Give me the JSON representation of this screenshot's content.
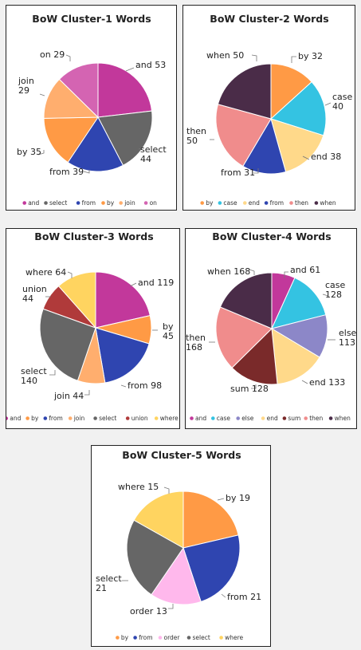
{
  "chart_data": [
    {
      "type": "pie",
      "title": "BoW Cluster-1 Words",
      "legend_position": "bottom",
      "categories": [
        "and",
        "select",
        "from",
        "by",
        "join",
        "on"
      ],
      "values": [
        53,
        44,
        39,
        35,
        29,
        29
      ],
      "colors": [
        "#c2389b",
        "#666666",
        "#2f45b0",
        "#ff9a45",
        "#ffae6e",
        "#d464b2"
      ],
      "slice_labels": [
        {
          "lines": [
            "and 53"
          ]
        },
        {
          "lines": [
            "select",
            "44"
          ]
        },
        {
          "lines": [
            "from 39"
          ]
        },
        {
          "lines": [
            "by 35"
          ]
        },
        {
          "lines": [
            "join",
            "29"
          ]
        },
        {
          "lines": [
            "on 29"
          ]
        }
      ]
    },
    {
      "type": "pie",
      "title": "BoW Cluster-2 Words",
      "legend_position": "bottom",
      "categories": [
        "by",
        "case",
        "end",
        "from",
        "then",
        "when"
      ],
      "values": [
        32,
        40,
        38,
        31,
        50,
        50
      ],
      "colors": [
        "#ff9a45",
        "#34c3e2",
        "#ffd98a",
        "#2f45b0",
        "#f08c8c",
        "#4a2c48"
      ],
      "slice_labels": [
        {
          "lines": [
            "by 32"
          ]
        },
        {
          "lines": [
            "case",
            "40"
          ]
        },
        {
          "lines": [
            "end 38"
          ]
        },
        {
          "lines": [
            "from 31"
          ]
        },
        {
          "lines": [
            "then",
            "50"
          ]
        },
        {
          "lines": [
            "when 50"
          ]
        }
      ]
    },
    {
      "type": "pie",
      "title": "BoW Cluster-3 Words",
      "legend_position": "bottom",
      "categories": [
        "and",
        "by",
        "from",
        "join",
        "select",
        "union",
        "where"
      ],
      "values": [
        119,
        45,
        98,
        44,
        140,
        44,
        64
      ],
      "colors": [
        "#c2389b",
        "#ff9a45",
        "#2f45b0",
        "#ffae6e",
        "#666666",
        "#b03a3a",
        "#ffd460"
      ],
      "slice_labels": [
        {
          "lines": [
            "and 119"
          ]
        },
        {
          "lines": [
            "by",
            "45"
          ]
        },
        {
          "lines": [
            "from 98"
          ]
        },
        {
          "lines": [
            "join 44"
          ]
        },
        {
          "lines": [
            "select",
            "140"
          ]
        },
        {
          "lines": [
            "union",
            "44"
          ]
        },
        {
          "lines": [
            "where 64"
          ]
        }
      ]
    },
    {
      "type": "pie",
      "title": "BoW Cluster-4 Words",
      "legend_position": "bottom",
      "categories": [
        "and",
        "case",
        "else",
        "end",
        "sum",
        "then",
        "when"
      ],
      "values": [
        61,
        128,
        113,
        133,
        128,
        168,
        168
      ],
      "colors": [
        "#c2389b",
        "#34c3e2",
        "#8c87c8",
        "#ffd98a",
        "#7a2a2a",
        "#f08c8c",
        "#4a2c48"
      ],
      "slice_labels": [
        {
          "lines": [
            "and 61"
          ]
        },
        {
          "lines": [
            "case",
            "128"
          ]
        },
        {
          "lines": [
            "else",
            "113"
          ]
        },
        {
          "lines": [
            "end 133"
          ]
        },
        {
          "lines": [
            "sum 128"
          ]
        },
        {
          "lines": [
            "then",
            "168"
          ]
        },
        {
          "lines": [
            "when 168"
          ]
        }
      ]
    },
    {
      "type": "pie",
      "title": "BoW Cluster-5 Words",
      "legend_position": "bottom",
      "categories": [
        "by",
        "from",
        "order",
        "select",
        "where"
      ],
      "values": [
        19,
        21,
        13,
        21,
        15
      ],
      "colors": [
        "#ff9a45",
        "#2f45b0",
        "#ffb8ec",
        "#666666",
        "#ffd460"
      ],
      "slice_labels": [
        {
          "lines": [
            "by 19"
          ]
        },
        {
          "lines": [
            "from 21"
          ]
        },
        {
          "lines": [
            "order 13"
          ]
        },
        {
          "lines": [
            "select",
            "21"
          ]
        },
        {
          "lines": [
            "where 15"
          ]
        }
      ]
    }
  ]
}
